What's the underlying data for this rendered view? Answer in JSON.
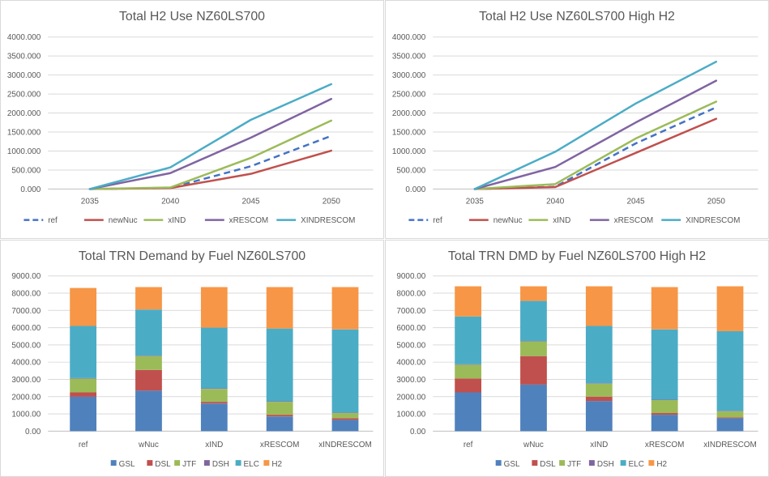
{
  "colors": {
    "ref": "#4472c4",
    "newNuc": "#c0504d",
    "xIND": "#9bbb59",
    "xRESCOM": "#8064a2",
    "XINDRESCOM": "#4bacc6",
    "GSL": "#4f81bd",
    "DSL": "#c0504d",
    "JTF": "#9bbb59",
    "DSH": "#8064a2",
    "ELC": "#4bacc6",
    "H2": "#f79646"
  },
  "chart_data": [
    {
      "type": "line",
      "title": "Total H2 Use NZ60LS700",
      "x": [
        "2035",
        "2040",
        "2045",
        "2050"
      ],
      "ylim": [
        0,
        4000
      ],
      "yticks": [
        "0.000",
        "500.000",
        "1000.000",
        "1500.000",
        "2000.000",
        "2500.000",
        "3000.000",
        "3500.000",
        "4000.000"
      ],
      "grid": true,
      "legend": "bottom",
      "series": [
        {
          "name": "ref",
          "values": [
            0,
            30,
            600,
            1400
          ],
          "dashed": true
        },
        {
          "name": "newNuc",
          "values": [
            0,
            25,
            400,
            1010
          ]
        },
        {
          "name": "xIND",
          "values": [
            0,
            40,
            820,
            1800
          ]
        },
        {
          "name": "xRESCOM",
          "values": [
            0,
            420,
            1350,
            2370
          ]
        },
        {
          "name": "XINDRESCOM",
          "values": [
            0,
            570,
            1820,
            2760
          ]
        }
      ]
    },
    {
      "type": "line",
      "title": "Total H2 Use NZ60LS700 High H2",
      "x": [
        "2035",
        "2040",
        "2045",
        "2050"
      ],
      "ylim": [
        0,
        4000
      ],
      "yticks": [
        "0.000",
        "500.000",
        "1000.000",
        "1500.000",
        "2000.000",
        "2500.000",
        "3000.000",
        "3500.000",
        "4000.000"
      ],
      "grid": true,
      "legend": "bottom",
      "series": [
        {
          "name": "ref",
          "values": [
            0,
            60,
            1200,
            2150
          ],
          "dashed": true
        },
        {
          "name": "newNuc",
          "values": [
            0,
            50,
            950,
            1850
          ]
        },
        {
          "name": "xIND",
          "values": [
            0,
            130,
            1330,
            2300
          ]
        },
        {
          "name": "xRESCOM",
          "values": [
            0,
            580,
            1750,
            2850
          ]
        },
        {
          "name": "XINDRESCOM",
          "values": [
            0,
            980,
            2250,
            3350
          ]
        }
      ]
    },
    {
      "type": "bar",
      "stacked": true,
      "title": "Total TRN Demand by Fuel NZ60LS700",
      "categories": [
        "ref",
        "wNuc",
        "xIND",
        "xRESCOM",
        "xINDRESCOM"
      ],
      "ylim": [
        0,
        9000
      ],
      "yticks": [
        "0.00",
        "1000.00",
        "2000.00",
        "3000.00",
        "4000.00",
        "5000.00",
        "6000.00",
        "7000.00",
        "8000.00",
        "9000.00"
      ],
      "grid": true,
      "legend": "bottom",
      "series": [
        {
          "name": "GSL",
          "values": [
            2000,
            2350,
            1600,
            850,
            650
          ]
        },
        {
          "name": "DSL",
          "values": [
            250,
            1200,
            100,
            100,
            100
          ]
        },
        {
          "name": "JTF",
          "values": [
            800,
            800,
            750,
            750,
            300
          ]
        },
        {
          "name": "DSH",
          "values": [
            30,
            30,
            30,
            30,
            30
          ]
        },
        {
          "name": "ELC",
          "values": [
            3020,
            2670,
            3520,
            4220,
            4820
          ]
        },
        {
          "name": "H2",
          "values": [
            2200,
            1300,
            2350,
            2400,
            2450
          ]
        }
      ]
    },
    {
      "type": "bar",
      "stacked": true,
      "title": "Total TRN DMD by Fuel NZ60LS700 High H2",
      "categories": [
        "ref",
        "wNuc",
        "xIND",
        "xRESCOM",
        "xINDRESCOM"
      ],
      "ylim": [
        0,
        9000
      ],
      "yticks": [
        "0.00",
        "1000.00",
        "2000.00",
        "3000.00",
        "4000.00",
        "5000.00",
        "6000.00",
        "7000.00",
        "8000.00",
        "9000.00"
      ],
      "grid": true,
      "legend": "bottom",
      "series": [
        {
          "name": "GSL",
          "values": [
            2250,
            2700,
            1750,
            950,
            750
          ]
        },
        {
          "name": "DSL",
          "values": [
            800,
            1650,
            250,
            100,
            50
          ]
        },
        {
          "name": "JTF",
          "values": [
            800,
            850,
            750,
            750,
            350
          ]
        },
        {
          "name": "DSH",
          "values": [
            30,
            30,
            30,
            30,
            30
          ]
        },
        {
          "name": "ELC",
          "values": [
            2770,
            2320,
            3320,
            4070,
            4620
          ]
        },
        {
          "name": "H2",
          "values": [
            1750,
            850,
            2300,
            2450,
            2600
          ]
        }
      ]
    }
  ]
}
